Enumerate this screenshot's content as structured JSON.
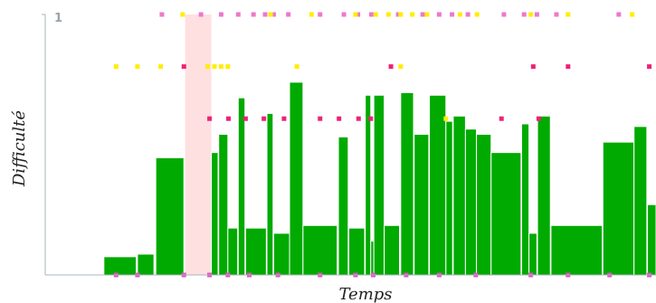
{
  "chart_data": {
    "type": "bar",
    "title": "",
    "xlabel": "Temps",
    "ylabel": "Difficulté",
    "ylim": [
      0,
      1
    ],
    "y_tick_labels": [
      "1"
    ],
    "x_unit": "temps (relative, 0–100 across visible span)",
    "bars": [
      {
        "x0": 9.6,
        "x1": 14.9,
        "y": 0.07
      },
      {
        "x0": 15.1,
        "x1": 17.8,
        "y": 0.08
      },
      {
        "x0": 18.1,
        "x1": 22.7,
        "y": 0.45
      },
      {
        "x0": 27.2,
        "x1": 28.3,
        "y": 0.47
      },
      {
        "x0": 28.4,
        "x1": 29.9,
        "y": 0.54
      },
      {
        "x0": 29.9,
        "x1": 31.5,
        "y": 0.18
      },
      {
        "x0": 31.6,
        "x1": 32.7,
        "y": 0.68
      },
      {
        "x0": 32.8,
        "x1": 36.2,
        "y": 0.18
      },
      {
        "x0": 36.3,
        "x1": 37.3,
        "y": 0.62
      },
      {
        "x0": 37.4,
        "x1": 40.0,
        "y": 0.16
      },
      {
        "x0": 40.0,
        "x1": 42.2,
        "y": 0.74
      },
      {
        "x0": 42.2,
        "x1": 47.8,
        "y": 0.19
      },
      {
        "x0": 48.0,
        "x1": 49.6,
        "y": 0.53
      },
      {
        "x0": 49.7,
        "x1": 52.3,
        "y": 0.18
      },
      {
        "x0": 52.4,
        "x1": 53.3,
        "y": 0.69
      },
      {
        "x0": 53.3,
        "x1": 53.8,
        "y": 0.13
      },
      {
        "x0": 53.8,
        "x1": 55.5,
        "y": 0.69
      },
      {
        "x0": 55.5,
        "x1": 58.0,
        "y": 0.19
      },
      {
        "x0": 58.2,
        "x1": 60.3,
        "y": 0.7
      },
      {
        "x0": 60.4,
        "x1": 62.8,
        "y": 0.54
      },
      {
        "x0": 62.9,
        "x1": 65.6,
        "y": 0.69
      },
      {
        "x0": 65.6,
        "x1": 66.7,
        "y": 0.59
      },
      {
        "x0": 66.8,
        "x1": 68.8,
        "y": 0.61
      },
      {
        "x0": 68.8,
        "x1": 70.6,
        "y": 0.56
      },
      {
        "x0": 70.6,
        "x1": 73.0,
        "y": 0.54
      },
      {
        "x0": 73.0,
        "x1": 77.9,
        "y": 0.47
      },
      {
        "x0": 78.0,
        "x1": 79.2,
        "y": 0.58
      },
      {
        "x0": 79.2,
        "x1": 80.5,
        "y": 0.16
      },
      {
        "x0": 80.6,
        "x1": 82.7,
        "y": 0.61
      },
      {
        "x0": 82.8,
        "x1": 91.2,
        "y": 0.19
      },
      {
        "x0": 91.3,
        "x1": 96.4,
        "y": 0.51
      },
      {
        "x0": 96.4,
        "x1": 98.5,
        "y": 0.57
      },
      {
        "x0": 98.6,
        "x1": 100.0,
        "y": 0.27
      }
    ],
    "highlight_band": {
      "x0": 22.9,
      "x1": 27.2,
      "color": "#ffe0e0"
    },
    "marker_rows": [
      {
        "name": "",
        "y": 1.0,
        "color": "#ee77cc",
        "x": [
          19.1,
          25.5,
          28.8,
          31.6,
          34.1,
          36.0,
          37.4,
          39.8,
          45.0,
          48.9,
          51.2,
          53.4,
          57.8,
          61.8,
          64.5,
          66.6,
          69.2,
          75.1,
          78.4,
          80.5,
          83.7,
          93.9
        ]
      },
      {
        "name": "",
        "y": 1.0,
        "color": "#ffee00",
        "x": [
          22.5,
          36.9,
          43.6,
          50.8,
          54.1,
          56.2,
          58.2,
          60.1,
          62.5,
          67.9,
          70.7,
          79.5,
          85.6,
          96.1
        ]
      },
      {
        "name": "",
        "y": 0.8,
        "color": "#ffee00",
        "x": [
          11.6,
          15.1,
          18.9,
          26.6,
          27.7,
          28.8,
          29.9,
          41.2,
          58.2
        ]
      },
      {
        "name": "",
        "y": 0.8,
        "color": "#ee2277",
        "x": [
          22.7,
          56.6,
          79.9,
          85.6,
          98.9
        ]
      },
      {
        "name": "",
        "y": 0.6,
        "color": "#ee2277",
        "x": [
          26.9,
          30.0,
          32.8,
          35.8,
          39.1,
          45.0,
          48.1,
          51.3,
          53.3,
          74.7,
          80.8
        ]
      },
      {
        "name": "",
        "y": 0.6,
        "color": "#ffee00",
        "x": [
          65.6
        ]
      },
      {
        "name": "",
        "y": 0.0,
        "color": "#dd55bb",
        "x": [
          11.6,
          15.1,
          22.7,
          26.9,
          29.9,
          33.4,
          38.1,
          45.0,
          50.8,
          53.7,
          59.1,
          64.5,
          70.5,
          79.5,
          85.6,
          92.4,
          98.9
        ]
      }
    ],
    "colors": {
      "bar": "#00aa00",
      "axis": "#aab4bc"
    },
    "grid": false,
    "legend": "none"
  }
}
